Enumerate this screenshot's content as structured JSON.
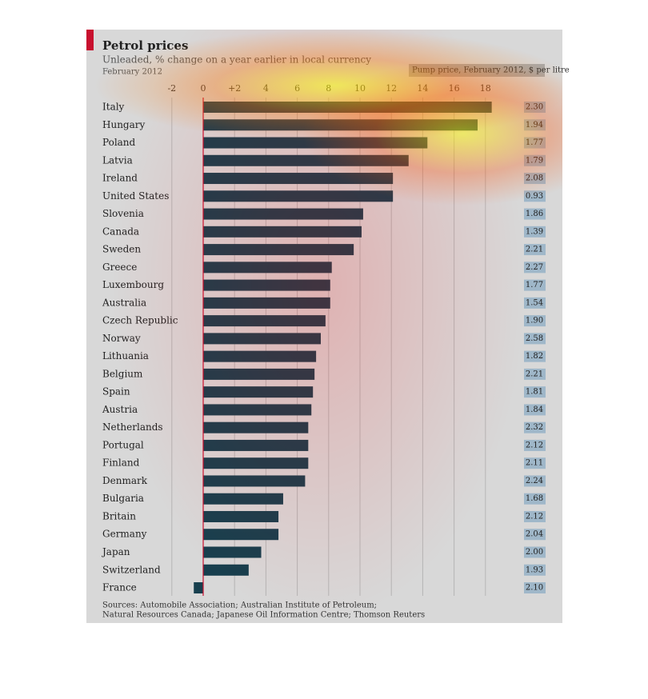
{
  "chart_data": {
    "type": "bar",
    "orientation": "horizontal",
    "title": "Petrol prices",
    "subtitle": "Unleaded, % change on a year earlier in local currency",
    "date": "February 2012",
    "categories": [
      "Italy",
      "Hungary",
      "Poland",
      "Latvia",
      "Ireland",
      "United States",
      "Slovenia",
      "Canada",
      "Sweden",
      "Greece",
      "Luxembourg",
      "Australia",
      "Czech Republic",
      "Norway",
      "Lithuania",
      "Belgium",
      "Spain",
      "Austria",
      "Netherlands",
      "Portugal",
      "Finland",
      "Denmark",
      "Bulgaria",
      "Britain",
      "Germany",
      "Japan",
      "Switzerland",
      "France"
    ],
    "values": [
      18.4,
      17.5,
      14.3,
      13.1,
      12.1,
      12.1,
      10.2,
      10.1,
      9.6,
      8.2,
      8.1,
      8.1,
      7.8,
      7.5,
      7.2,
      7.1,
      7.0,
      6.9,
      6.7,
      6.7,
      6.7,
      6.5,
      5.1,
      4.8,
      4.8,
      3.7,
      2.9,
      -0.6
    ],
    "color": "#173f4e",
    "xlim": [
      -3,
      20
    ],
    "xticks": [
      -2,
      0,
      {
        "value": 2,
        "label": "+2"
      },
      4,
      6,
      8,
      10,
      12,
      14,
      16,
      18
    ],
    "grid": true,
    "zero_line_color": "#c8102e",
    "pump_prices": {
      "label": "Pump price, February 2012, $ per litre",
      "values": [
        2.3,
        1.94,
        1.77,
        1.79,
        2.08,
        0.93,
        1.86,
        1.39,
        2.21,
        2.27,
        1.77,
        1.54,
        1.9,
        2.58,
        1.82,
        2.21,
        1.81,
        1.84,
        2.32,
        2.12,
        2.11,
        2.24,
        1.68,
        2.12,
        2.04,
        2.0,
        1.93,
        2.1
      ],
      "value_labels": [
        "2.30",
        "1.94",
        "1.77",
        "1.79",
        "2.08",
        "0.93",
        "1.86",
        "1.39",
        "2.21",
        "2.27",
        "1.77",
        "1.54",
        "1.90",
        "2.58",
        "1.82",
        "2.21",
        "1.81",
        "1.84",
        "2.32",
        "2.12",
        "2.11",
        "2.24",
        "1.68",
        "2.12",
        "2.04",
        "2.00",
        "1.93",
        "2.10"
      ],
      "color": "#9fb7c9"
    },
    "sources": [
      "Sources: Automobile Association; Australian Institute of Petroleum;",
      "Natural Resources Canada; Japanese Oil Information Centre; Thomson Reuters"
    ]
  }
}
